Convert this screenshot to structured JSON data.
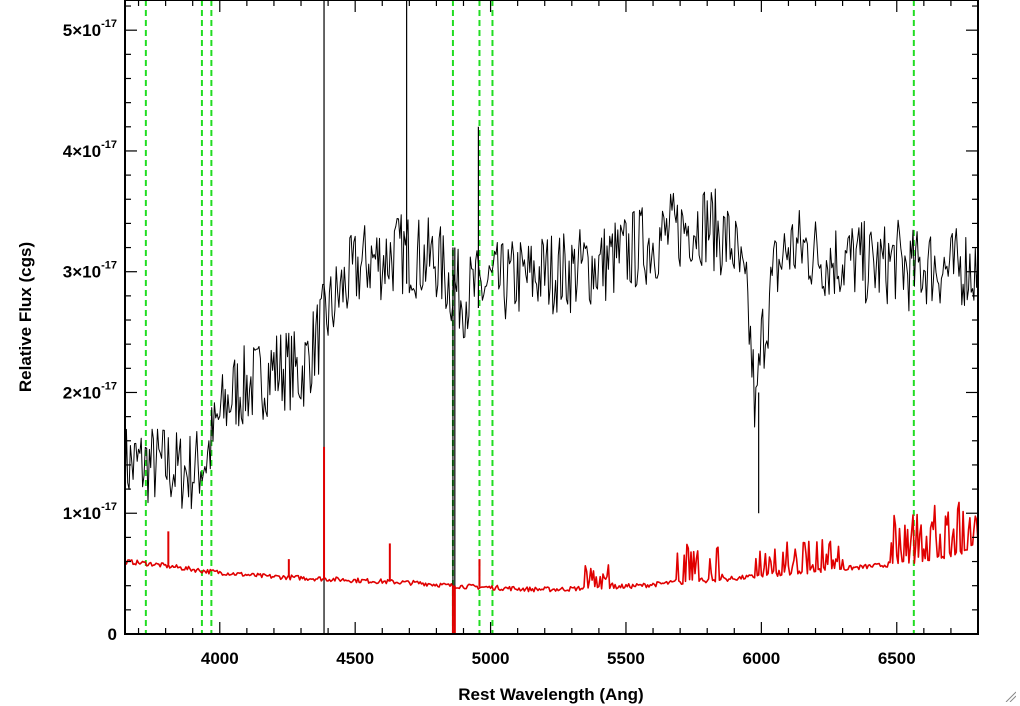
{
  "chart_data": {
    "type": "line",
    "xlabel": "Rest Wavelength (Ang)",
    "ylabel": "Relative Flux (cgs)",
    "xlim": [
      3650,
      6800
    ],
    "ylim": [
      0,
      5.25e-17
    ],
    "x_ticks": [
      {
        "value": 4000,
        "label": "4000"
      },
      {
        "value": 4500,
        "label": "4500"
      },
      {
        "value": 5000,
        "label": "5000"
      },
      {
        "value": 5500,
        "label": "5500"
      },
      {
        "value": 6000,
        "label": "6000"
      },
      {
        "value": 6500,
        "label": "6500"
      }
    ],
    "y_ticks": [
      {
        "value": 0,
        "label": "0"
      },
      {
        "value": 1e-17,
        "mantissa": "1",
        "times": "×10",
        "exponent": "-17"
      },
      {
        "value": 2e-17,
        "mantissa": "2",
        "times": "×10",
        "exponent": "-17"
      },
      {
        "value": 3e-17,
        "mantissa": "3",
        "times": "×10",
        "exponent": "-17"
      },
      {
        "value": 4e-17,
        "mantissa": "4",
        "times": "×10",
        "exponent": "-17"
      },
      {
        "value": 5e-17,
        "mantissa": "5",
        "times": "×10",
        "exponent": "-17"
      }
    ],
    "y_scale": 1e-17,
    "vertical_markers": [
      3727,
      3934,
      3969,
      4861,
      4959,
      5007,
      6563
    ],
    "series": [
      {
        "color": "#000000",
        "step": 5,
        "x": [
          3650,
          3700,
          3750,
          3800,
          3850,
          3900,
          3950,
          4000,
          4050,
          4100,
          4150,
          4200,
          4250,
          4300,
          4350,
          4400,
          4450,
          4500,
          4550,
          4600,
          4650,
          4700,
          4750,
          4800,
          4850,
          4900,
          4950,
          5000,
          5050,
          5100,
          5150,
          5200,
          5250,
          5300,
          5350,
          5400,
          5450,
          5500,
          5550,
          5600,
          5650,
          5700,
          5750,
          5800,
          5850,
          5900,
          5950,
          5980,
          6000,
          6050,
          6100,
          6150,
          6200,
          6250,
          6300,
          6350,
          6400,
          6450,
          6500,
          6550,
          6600,
          6650,
          6700,
          6750,
          6800
        ],
        "values": [
          1.4e-17,
          1.4e-17,
          1.4e-17,
          1.4e-17,
          1.35e-17,
          1.35e-17,
          1.45e-17,
          1.8e-17,
          2e-17,
          2.05e-17,
          2.1e-17,
          2.2e-17,
          2.2e-17,
          2.15e-17,
          2.4e-17,
          2.65e-17,
          2.85e-17,
          3e-17,
          3.1e-17,
          3.1e-17,
          3.15e-17,
          3.15e-17,
          3.1e-17,
          3.1e-17,
          2.9e-17,
          2.8e-17,
          2.85e-17,
          2.9e-17,
          2.9e-17,
          2.95e-17,
          2.95e-17,
          3e-17,
          3e-17,
          3e-17,
          3.05e-17,
          3.05e-17,
          3.1e-17,
          3.15e-17,
          3.2e-17,
          3.25e-17,
          3.3e-17,
          3.35e-17,
          3.4e-17,
          3.4e-17,
          3.3e-17,
          3.2e-17,
          2.7e-17,
          1.8e-17,
          2.4e-17,
          3e-17,
          3.2e-17,
          3.2e-17,
          3.15e-17,
          3.1e-17,
          3.1e-17,
          3.1e-17,
          3.05e-17,
          3.05e-17,
          3.1e-17,
          3e-17,
          3.05e-17,
          3.05e-17,
          3e-17,
          3.05e-17,
          3e-17
        ],
        "noise": 3.5e-18,
        "spikes": [
          [
            4385,
            5.25e-17,
            0
          ],
          [
            4690,
            5.25e-17,
            2.9e-17
          ],
          [
            4861,
            3.2e-17,
            0
          ],
          [
            4868,
            3.2e-17,
            0
          ],
          [
            4955,
            4.2e-17,
            2.7e-17
          ],
          [
            5990,
            1e-17,
            2e-17
          ]
        ]
      },
      {
        "color": "#e00000",
        "step": 5,
        "x": [
          3650,
          3750,
          3850,
          3950,
          4050,
          4150,
          4250,
          4350,
          4450,
          4550,
          4650,
          4750,
          4850,
          4950,
          5050,
          5150,
          5250,
          5350,
          5450,
          5550,
          5650,
          5750,
          5850,
          5950,
          6050,
          6150,
          6250,
          6350,
          6450,
          6550,
          6650,
          6750,
          6800
        ],
        "values": [
          6e-18,
          5.8e-18,
          5.5e-18,
          5.2e-18,
          5e-18,
          4.8e-18,
          4.7e-18,
          4.6e-18,
          4.5e-18,
          4.4e-18,
          4.3e-18,
          4.2e-18,
          4e-18,
          3.9e-18,
          3.8e-18,
          3.7e-18,
          3.7e-18,
          3.8e-18,
          3.9e-18,
          4e-18,
          4.2e-18,
          4.4e-18,
          4.5e-18,
          4.7e-18,
          4.9e-18,
          5.1e-18,
          5.3e-18,
          5.5e-18,
          5.7e-18,
          6e-18,
          6.3e-18,
          6.8e-18,
          7.5e-18
        ],
        "noise": 2e-19,
        "spikes": [
          [
            3810,
            8.5e-18,
            5.8e-18
          ],
          [
            4255,
            6.2e-18,
            4.7e-18
          ],
          [
            4385,
            1.55e-17,
            4.6e-18
          ],
          [
            4628,
            7.5e-18,
            4.4e-18
          ],
          [
            4861,
            4e-18,
            -1e-18
          ],
          [
            4868,
            4e-18,
            -1e-18
          ],
          [
            4959,
            6.2e-18,
            3.9e-18
          ]
        ],
        "emission_forest": [
          [
            5350,
            5450,
            5.8e-18
          ],
          [
            5680,
            5860,
            7.8e-18
          ],
          [
            5980,
            6300,
            7.8e-18
          ],
          [
            6480,
            6800,
            1.1e-17
          ]
        ]
      }
    ]
  }
}
